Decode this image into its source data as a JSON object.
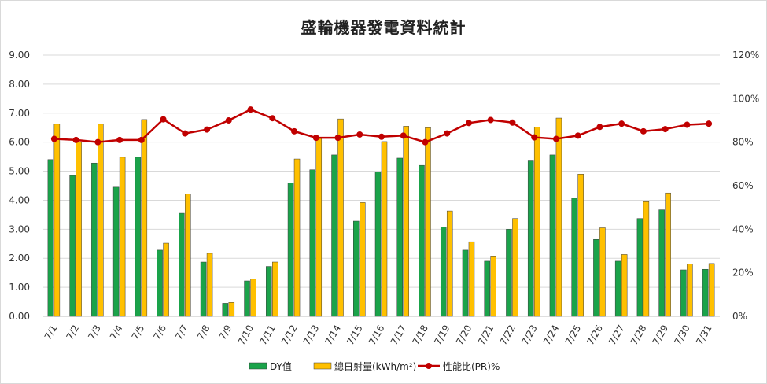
{
  "chart_data": {
    "type": "bar",
    "title": "盛輪機器發電資料統計",
    "categories": [
      "7/1",
      "7/2",
      "7/3",
      "7/4",
      "7/5",
      "7/6",
      "7/7",
      "7/8",
      "7/9",
      "7/10",
      "7/11",
      "7/12",
      "7/13",
      "7/14",
      "7/15",
      "7/16",
      "7/17",
      "7/18",
      "7/19",
      "7/20",
      "7/21",
      "7/22",
      "7/23",
      "7/24",
      "7/25",
      "7/26",
      "7/27",
      "7/28",
      "7/29",
      "7/30",
      "7/31"
    ],
    "y_left": {
      "min": 0,
      "max": 9,
      "step": 1,
      "tick_labels": [
        "0.00",
        "1.00",
        "2.00",
        "3.00",
        "4.00",
        "5.00",
        "6.00",
        "7.00",
        "8.00",
        "9.00"
      ]
    },
    "y_right": {
      "min": 0,
      "max": 120,
      "step": 20,
      "tick_labels": [
        "0%",
        "20%",
        "40%",
        "60%",
        "80%",
        "100%",
        "120%"
      ]
    },
    "grid": true,
    "legend_position": "bottom",
    "series": [
      {
        "name": "DY值",
        "type": "bar",
        "axis": "left",
        "color": "#1aa34a",
        "values": [
          5.4,
          4.85,
          5.28,
          4.45,
          5.48,
          2.28,
          3.55,
          1.87,
          0.45,
          1.22,
          1.72,
          4.6,
          5.05,
          5.56,
          3.28,
          4.97,
          5.45,
          5.2,
          3.07,
          2.28,
          1.9,
          3.0,
          5.38,
          5.56,
          4.07,
          2.65,
          1.9,
          3.37,
          3.67,
          1.6,
          1.62
        ]
      },
      {
        "name": "總日射量(kWh/m²)",
        "type": "bar",
        "axis": "left",
        "color": "#ffc000",
        "values": [
          6.62,
          6.0,
          6.62,
          5.48,
          6.78,
          2.52,
          4.22,
          2.17,
          0.48,
          1.28,
          1.87,
          5.42,
          6.15,
          6.8,
          3.92,
          6.02,
          6.55,
          6.5,
          3.63,
          2.57,
          2.08,
          3.37,
          6.52,
          6.83,
          4.9,
          3.05,
          2.13,
          3.95,
          4.25,
          1.8,
          1.82
        ]
      },
      {
        "name": "性能比(PR)%",
        "type": "line",
        "axis": "right",
        "color": "#c00000",
        "values": [
          81.5,
          81.0,
          80.0,
          81.0,
          81.0,
          90.5,
          84.0,
          85.8,
          90.0,
          95.0,
          91.0,
          85.0,
          82.0,
          82.0,
          83.5,
          82.5,
          83.0,
          80.0,
          84.0,
          88.8,
          90.2,
          89.0,
          82.2,
          81.5,
          83.0,
          87.0,
          88.5,
          85.0,
          86.0,
          88.0,
          88.5
        ]
      }
    ]
  }
}
